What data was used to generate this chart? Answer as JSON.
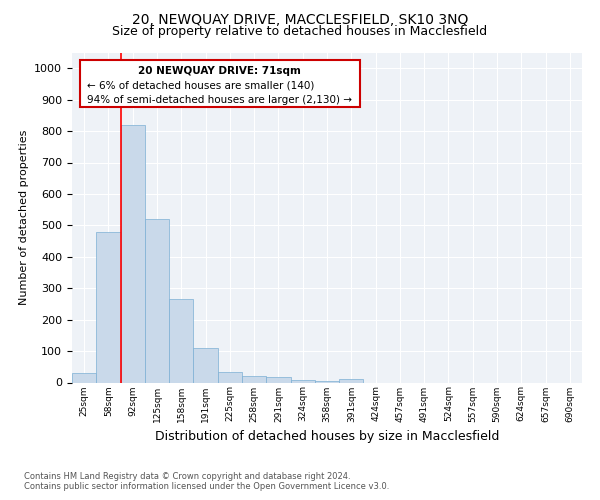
{
  "title": "20, NEWQUAY DRIVE, MACCLESFIELD, SK10 3NQ",
  "subtitle": "Size of property relative to detached houses in Macclesfield",
  "xlabel": "Distribution of detached houses by size in Macclesfield",
  "ylabel": "Number of detached properties",
  "footnote1": "Contains HM Land Registry data © Crown copyright and database right 2024.",
  "footnote2": "Contains public sector information licensed under the Open Government Licence v3.0.",
  "categories": [
    "25sqm",
    "58sqm",
    "92sqm",
    "125sqm",
    "158sqm",
    "191sqm",
    "225sqm",
    "258sqm",
    "291sqm",
    "324sqm",
    "358sqm",
    "391sqm",
    "424sqm",
    "457sqm",
    "491sqm",
    "524sqm",
    "557sqm",
    "590sqm",
    "624sqm",
    "657sqm",
    "690sqm"
  ],
  "values": [
    30,
    480,
    820,
    520,
    265,
    110,
    35,
    20,
    18,
    8,
    5,
    10,
    0,
    0,
    0,
    0,
    0,
    0,
    0,
    0,
    0
  ],
  "bar_color": "#c9d9ea",
  "bar_edge_color": "#7bafd4",
  "ylim": [
    0,
    1050
  ],
  "yticks": [
    0,
    100,
    200,
    300,
    400,
    500,
    600,
    700,
    800,
    900,
    1000
  ],
  "red_line_x": 1.5,
  "annotation_text_line1": "20 NEWQUAY DRIVE: 71sqm",
  "annotation_text_line2": "← 6% of detached houses are smaller (140)",
  "annotation_text_line3": "94% of semi-detached houses are larger (2,130) →",
  "annotation_box_color": "#cc0000",
  "background_color": "#eef2f7",
  "title_fontsize": 10,
  "subtitle_fontsize": 9
}
